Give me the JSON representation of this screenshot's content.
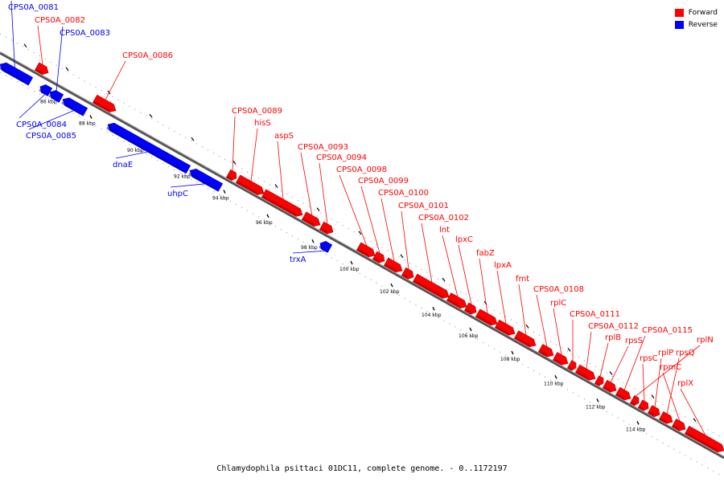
{
  "colors": {
    "forward": "#ff0000",
    "reverse": "#0000ff",
    "backbone": "#555555"
  },
  "legend": [
    {
      "label": "Forward",
      "color": "#ff0000"
    },
    {
      "label": "Reverse",
      "color": "#0000ff"
    }
  ],
  "caption": "Chlamydophila psittaci 01DC11, complete genome. - 0..1172197",
  "ticks": [
    "86 kbp",
    "88 kbp",
    "90 kbp",
    "92 kbp",
    "94 kbp",
    "96 kbp",
    "98 kbp",
    "100 kbp",
    "102 kbp",
    "104 kbp",
    "106 kbp",
    "108 kbp",
    "110 kbp",
    "112 kbp",
    "114 kbp"
  ],
  "genes": [
    {
      "label": "CPS0A_0081",
      "strand": "reverse"
    },
    {
      "label": "CPS0A_0082",
      "strand": "forward"
    },
    {
      "label": "CPS0A_0083",
      "strand": "reverse"
    },
    {
      "label": "CPS0A_0084",
      "strand": "reverse"
    },
    {
      "label": "CPS0A_0085",
      "strand": "reverse"
    },
    {
      "label": "CPS0A_0086",
      "strand": "forward"
    },
    {
      "label": "dnaE",
      "strand": "reverse"
    },
    {
      "label": "uhpC",
      "strand": "reverse"
    },
    {
      "label": "CPS0A_0089",
      "strand": "forward"
    },
    {
      "label": "hisS",
      "strand": "forward"
    },
    {
      "label": "aspS",
      "strand": "forward"
    },
    {
      "label": "CPS0A_0093",
      "strand": "forward"
    },
    {
      "label": "CPS0A_0094",
      "strand": "forward"
    },
    {
      "label": "trxA",
      "strand": "reverse"
    },
    {
      "label": "CPS0A_0098",
      "strand": "forward"
    },
    {
      "label": "CPS0A_0099",
      "strand": "forward"
    },
    {
      "label": "CPS0A_0100",
      "strand": "forward"
    },
    {
      "label": "CPS0A_0101",
      "strand": "forward"
    },
    {
      "label": "CPS0A_0102",
      "strand": "forward"
    },
    {
      "label": "lnt",
      "strand": "forward"
    },
    {
      "label": "lpxC",
      "strand": "forward"
    },
    {
      "label": "fabZ",
      "strand": "forward"
    },
    {
      "label": "lpxA",
      "strand": "forward"
    },
    {
      "label": "fmt",
      "strand": "forward"
    },
    {
      "label": "CPS0A_0108",
      "strand": "forward"
    },
    {
      "label": "rplC",
      "strand": "forward"
    },
    {
      "label": "CPS0A_0111",
      "strand": "forward"
    },
    {
      "label": "CPS0A_0112",
      "strand": "forward"
    },
    {
      "label": "rplB",
      "strand": "forward"
    },
    {
      "label": "rpsS",
      "strand": "forward"
    },
    {
      "label": "CPS0A_0115",
      "strand": "forward"
    },
    {
      "label": "rplN",
      "strand": "forward"
    },
    {
      "label": "rpsC",
      "strand": "forward"
    },
    {
      "label": "rplP",
      "strand": "forward"
    },
    {
      "label": "rpsQ",
      "strand": "forward"
    },
    {
      "label": "rpmC",
      "strand": "forward"
    },
    {
      "label": "rplX",
      "strand": "forward"
    }
  ]
}
